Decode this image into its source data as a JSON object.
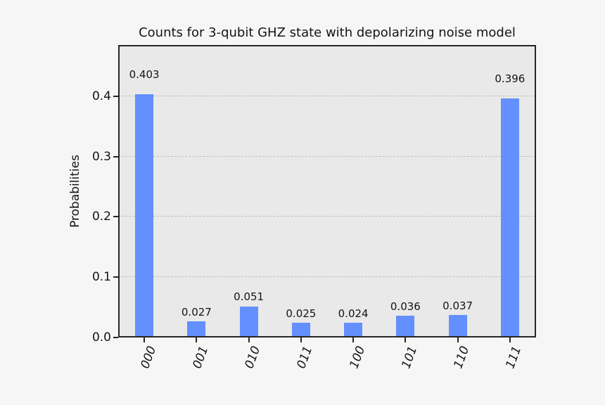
{
  "chart_data": {
    "type": "bar",
    "title": "Counts for 3-qubit GHZ state with depolarizing noise model",
    "xlabel": "",
    "ylabel": "Probabilities",
    "categories": [
      "000",
      "001",
      "010",
      "011",
      "100",
      "101",
      "110",
      "111"
    ],
    "values": [
      0.403,
      0.027,
      0.051,
      0.025,
      0.024,
      0.036,
      0.037,
      0.396
    ],
    "bar_value_labels": [
      "0.403",
      "0.027",
      "0.051",
      "0.025",
      "0.024",
      "0.036",
      "0.037",
      "0.396"
    ],
    "yticks": [
      0,
      0.1,
      0.2,
      0.3,
      0.4
    ],
    "ytick_labels": [
      "0.0",
      "0.1",
      "0.2",
      "0.3",
      "0.4"
    ],
    "ylim": [
      0,
      0.485
    ],
    "grid": {
      "axis": "y",
      "style": "dashed",
      "behind_bars": true
    },
    "legend": "none",
    "x_tick_rotation_deg": 70,
    "x_tick_font_style": "italic",
    "colors": {
      "bar": "#648fff",
      "figure_bg": "#f6f6f6",
      "axes_bg": "#e9e9e9",
      "spine": "#262626",
      "grid": "#bdbdbd",
      "text": "#141414"
    }
  }
}
